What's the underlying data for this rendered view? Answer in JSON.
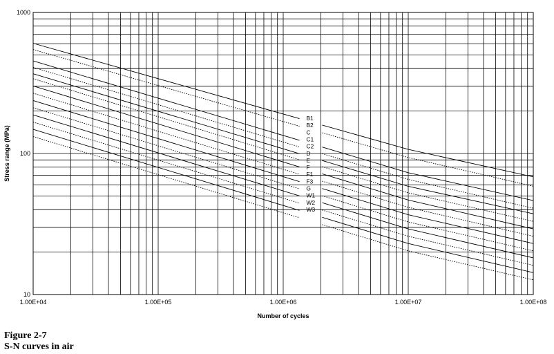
{
  "chart_data": {
    "type": "line",
    "xlabel": "Number of cycles",
    "ylabel": "Stress range (MPa)",
    "x_scale": "log",
    "y_scale": "log",
    "xlim": [
      10000,
      100000000
    ],
    "ylim": [
      10,
      1000
    ],
    "grid": true,
    "x_tick_values": [
      10000,
      100000,
      1000000,
      10000000,
      100000000
    ],
    "x_tick_labels": [
      "1.00E+04",
      "1.00E+05",
      "1.00E+06",
      "1.00E+07",
      "1.00E+08"
    ],
    "y_tick_values": [
      10,
      100,
      1000
    ],
    "y_tick_labels": [
      "10",
      "100",
      "1000"
    ],
    "series": [
      {
        "name": "B1",
        "style": "solid",
        "x": [
          10000,
          10000000,
          100000000
        ],
        "y": [
          604.3,
          106.9,
          68.3
        ]
      },
      {
        "name": "B2",
        "style": "dotted",
        "x": [
          10000,
          10000000,
          100000000
        ],
        "y": [
          545.9,
          93.6,
          58.6
        ]
      },
      {
        "name": "C",
        "style": "solid",
        "x": [
          10000,
          10000000,
          100000000
        ],
        "y": [
          453.2,
          73.1,
          46.4
        ]
      },
      {
        "name": "C1",
        "style": "dotted",
        "x": [
          10000,
          10000000,
          100000000
        ],
        "y": [
          408.4,
          65.5,
          40.9
        ]
      },
      {
        "name": "C2",
        "style": "solid",
        "x": [
          10000,
          10000000,
          100000000
        ],
        "y": [
          367.6,
          58.5,
          37.4
        ]
      },
      {
        "name": "D",
        "style": "dotted",
        "x": [
          10000,
          10000000,
          100000000
        ],
        "y": [
          339.1,
          52.6,
          33.0
        ]
      },
      {
        "name": "E",
        "style": "solid",
        "x": [
          10000,
          10000000,
          100000000
        ],
        "y": [
          301.1,
          46.8,
          29.2
        ]
      },
      {
        "name": "F",
        "style": "dotted",
        "x": [
          10000,
          10000000,
          100000000
        ],
        "y": [
          267.6,
          41.5,
          25.9
        ]
      },
      {
        "name": "F1",
        "style": "solid",
        "x": [
          10000,
          10000000,
          100000000
        ],
        "y": [
          237.4,
          36.8,
          23.0
        ]
      },
      {
        "name": "F3",
        "style": "dotted",
        "x": [
          10000,
          10000000,
          100000000
        ],
        "y": [
          211.1,
          32.7,
          20.4
        ]
      },
      {
        "name": "G",
        "style": "solid",
        "x": [
          10000,
          10000000,
          100000000
        ],
        "y": [
          187.8,
          29.2,
          18.2
        ]
      },
      {
        "name": "W1",
        "style": "dotted",
        "x": [
          10000,
          10000000,
          100000000
        ],
        "y": [
          166.9,
          25.9,
          16.1
        ]
      },
      {
        "name": "W2",
        "style": "solid",
        "x": [
          10000,
          10000000,
          100000000
        ],
        "y": [
          148.3,
          23.0,
          14.3
        ]
      },
      {
        "name": "W3",
        "style": "dotted",
        "x": [
          10000,
          10000000,
          100000000
        ],
        "y": [
          131.8,
          20.4,
          12.7
        ]
      }
    ]
  },
  "caption": {
    "figure": "Figure 2-7",
    "title": "S-N curves in air"
  }
}
